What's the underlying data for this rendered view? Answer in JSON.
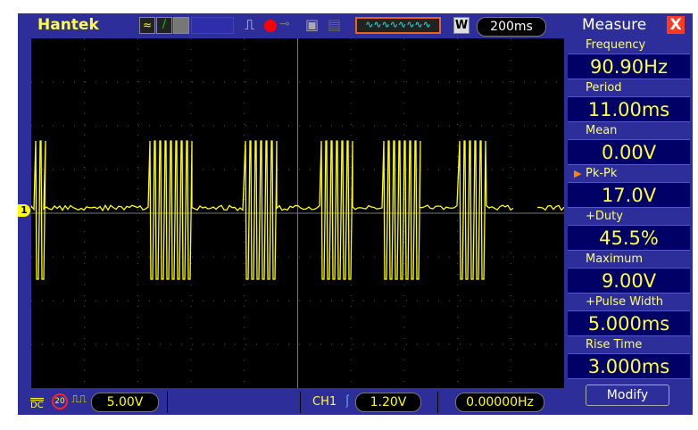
{
  "top": {
    "brand": "Hantek",
    "timebase": "200ms",
    "mode_icon": "W"
  },
  "bottom": {
    "coupling": "DC",
    "bw_limit": "20",
    "volts_div": "5.00V",
    "trigger_source": "CH1",
    "trigger_level": "1.20V",
    "trigger_freq": "0.00000Hz"
  },
  "channel_marker": "1",
  "measure": {
    "title": "Measure",
    "close": "X",
    "items": [
      {
        "label": "Frequency",
        "value": "90.90Hz"
      },
      {
        "label": "Period",
        "value": "11.00ms"
      },
      {
        "label": "Mean",
        "value": "0.00V"
      },
      {
        "label": "Pk-Pk",
        "value": "17.0V",
        "selected": true
      },
      {
        "label": "+Duty",
        "value": "45.5%"
      },
      {
        "label": "Maximum",
        "value": "9.00V"
      },
      {
        "label": "+Pulse Width",
        "value": "5.000ms"
      },
      {
        "label": "Rise Time",
        "value": "3.000ms"
      }
    ],
    "modify": "Modify"
  },
  "colors": {
    "frame": "#2e2e9a",
    "trace": "#ffff00",
    "accent": "#ff8800"
  }
}
